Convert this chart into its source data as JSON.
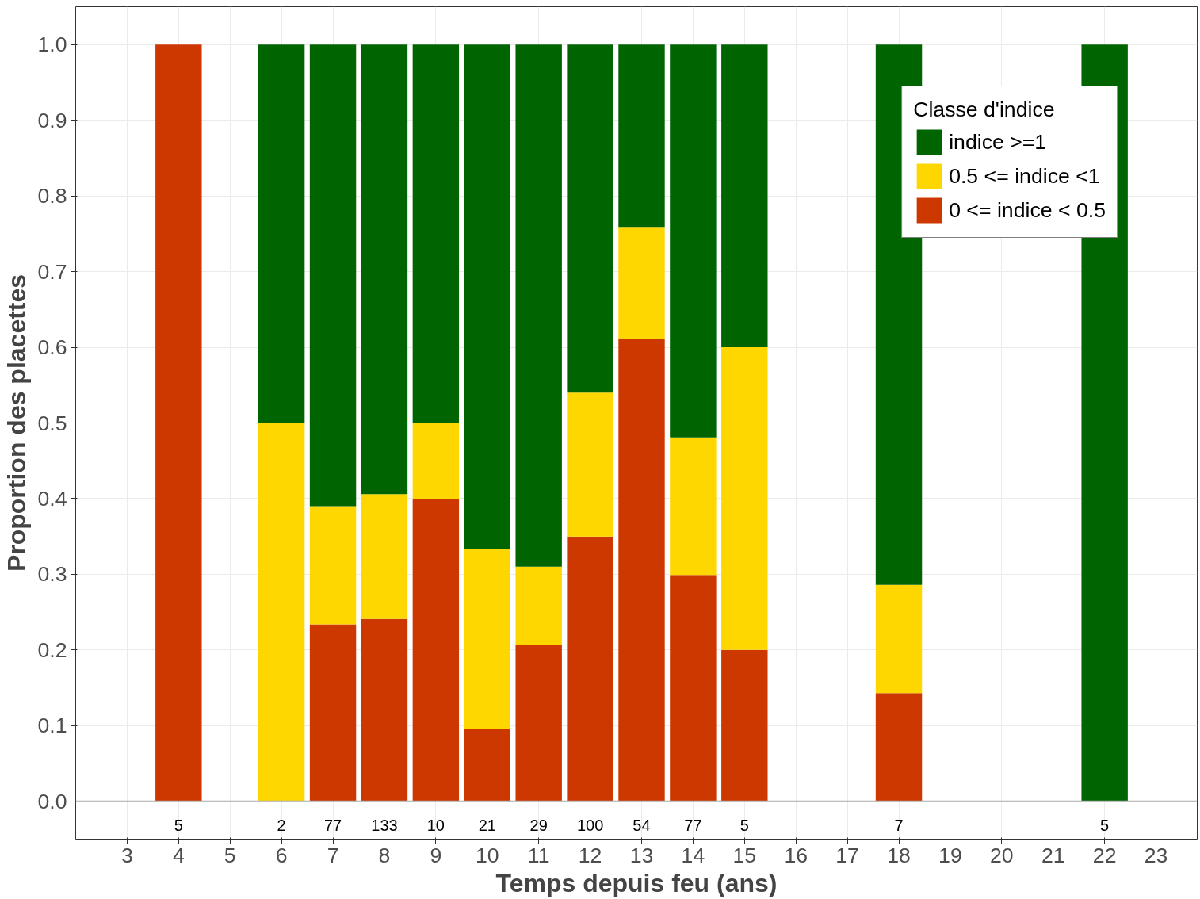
{
  "chart_data": {
    "type": "bar",
    "stacked": true,
    "xlabel": "Temps depuis feu (ans)",
    "ylabel": "Proportion des placettes",
    "legend_title": "Classe d'indice",
    "x": [
      4,
      6,
      7,
      8,
      9,
      10,
      11,
      12,
      13,
      14,
      15,
      18,
      22
    ],
    "series": [
      {
        "name": "0 <= indice < 0.5",
        "color": "#cd3700",
        "values": [
          1.0,
          null,
          0.234,
          0.241,
          0.4,
          0.095,
          0.207,
          0.35,
          0.611,
          0.299,
          0.2,
          0.143,
          null
        ]
      },
      {
        "name": "0.5 <= indice <1",
        "color": "#ffd700",
        "values": [
          null,
          0.5,
          0.156,
          0.165,
          0.1,
          0.238,
          0.103,
          0.19,
          0.148,
          0.182,
          0.4,
          0.143,
          null
        ]
      },
      {
        "name": "indice >=1",
        "color": "#006400",
        "values": [
          null,
          0.5,
          0.61,
          0.594,
          0.5,
          0.667,
          0.69,
          0.46,
          0.241,
          0.519,
          0.4,
          0.714,
          1.0
        ]
      }
    ],
    "xlim": [
      2.0,
      23.8
    ],
    "xticks": [
      3,
      4,
      5,
      6,
      7,
      8,
      9,
      10,
      11,
      12,
      13,
      14,
      15,
      16,
      17,
      18,
      19,
      20,
      21,
      22,
      23
    ],
    "ylim": [
      -0.05,
      1.05
    ],
    "yticks": [
      {
        "value": 0,
        "label": "0.0"
      },
      0.1,
      0.2,
      0.3,
      0.4,
      0.5,
      0.6,
      0.7,
      0.8,
      0.9,
      {
        "value": 1,
        "label": "1.0"
      }
    ],
    "ref_lines": [
      {
        "axis": "y",
        "value": 0,
        "color": "#aaaaaa"
      }
    ],
    "annotations": [
      "5",
      "2",
      "77",
      "133",
      "10",
      "21",
      "29",
      "100",
      "54",
      "77",
      "5",
      "7",
      "5"
    ],
    "grid": true,
    "legend": "top right"
  }
}
